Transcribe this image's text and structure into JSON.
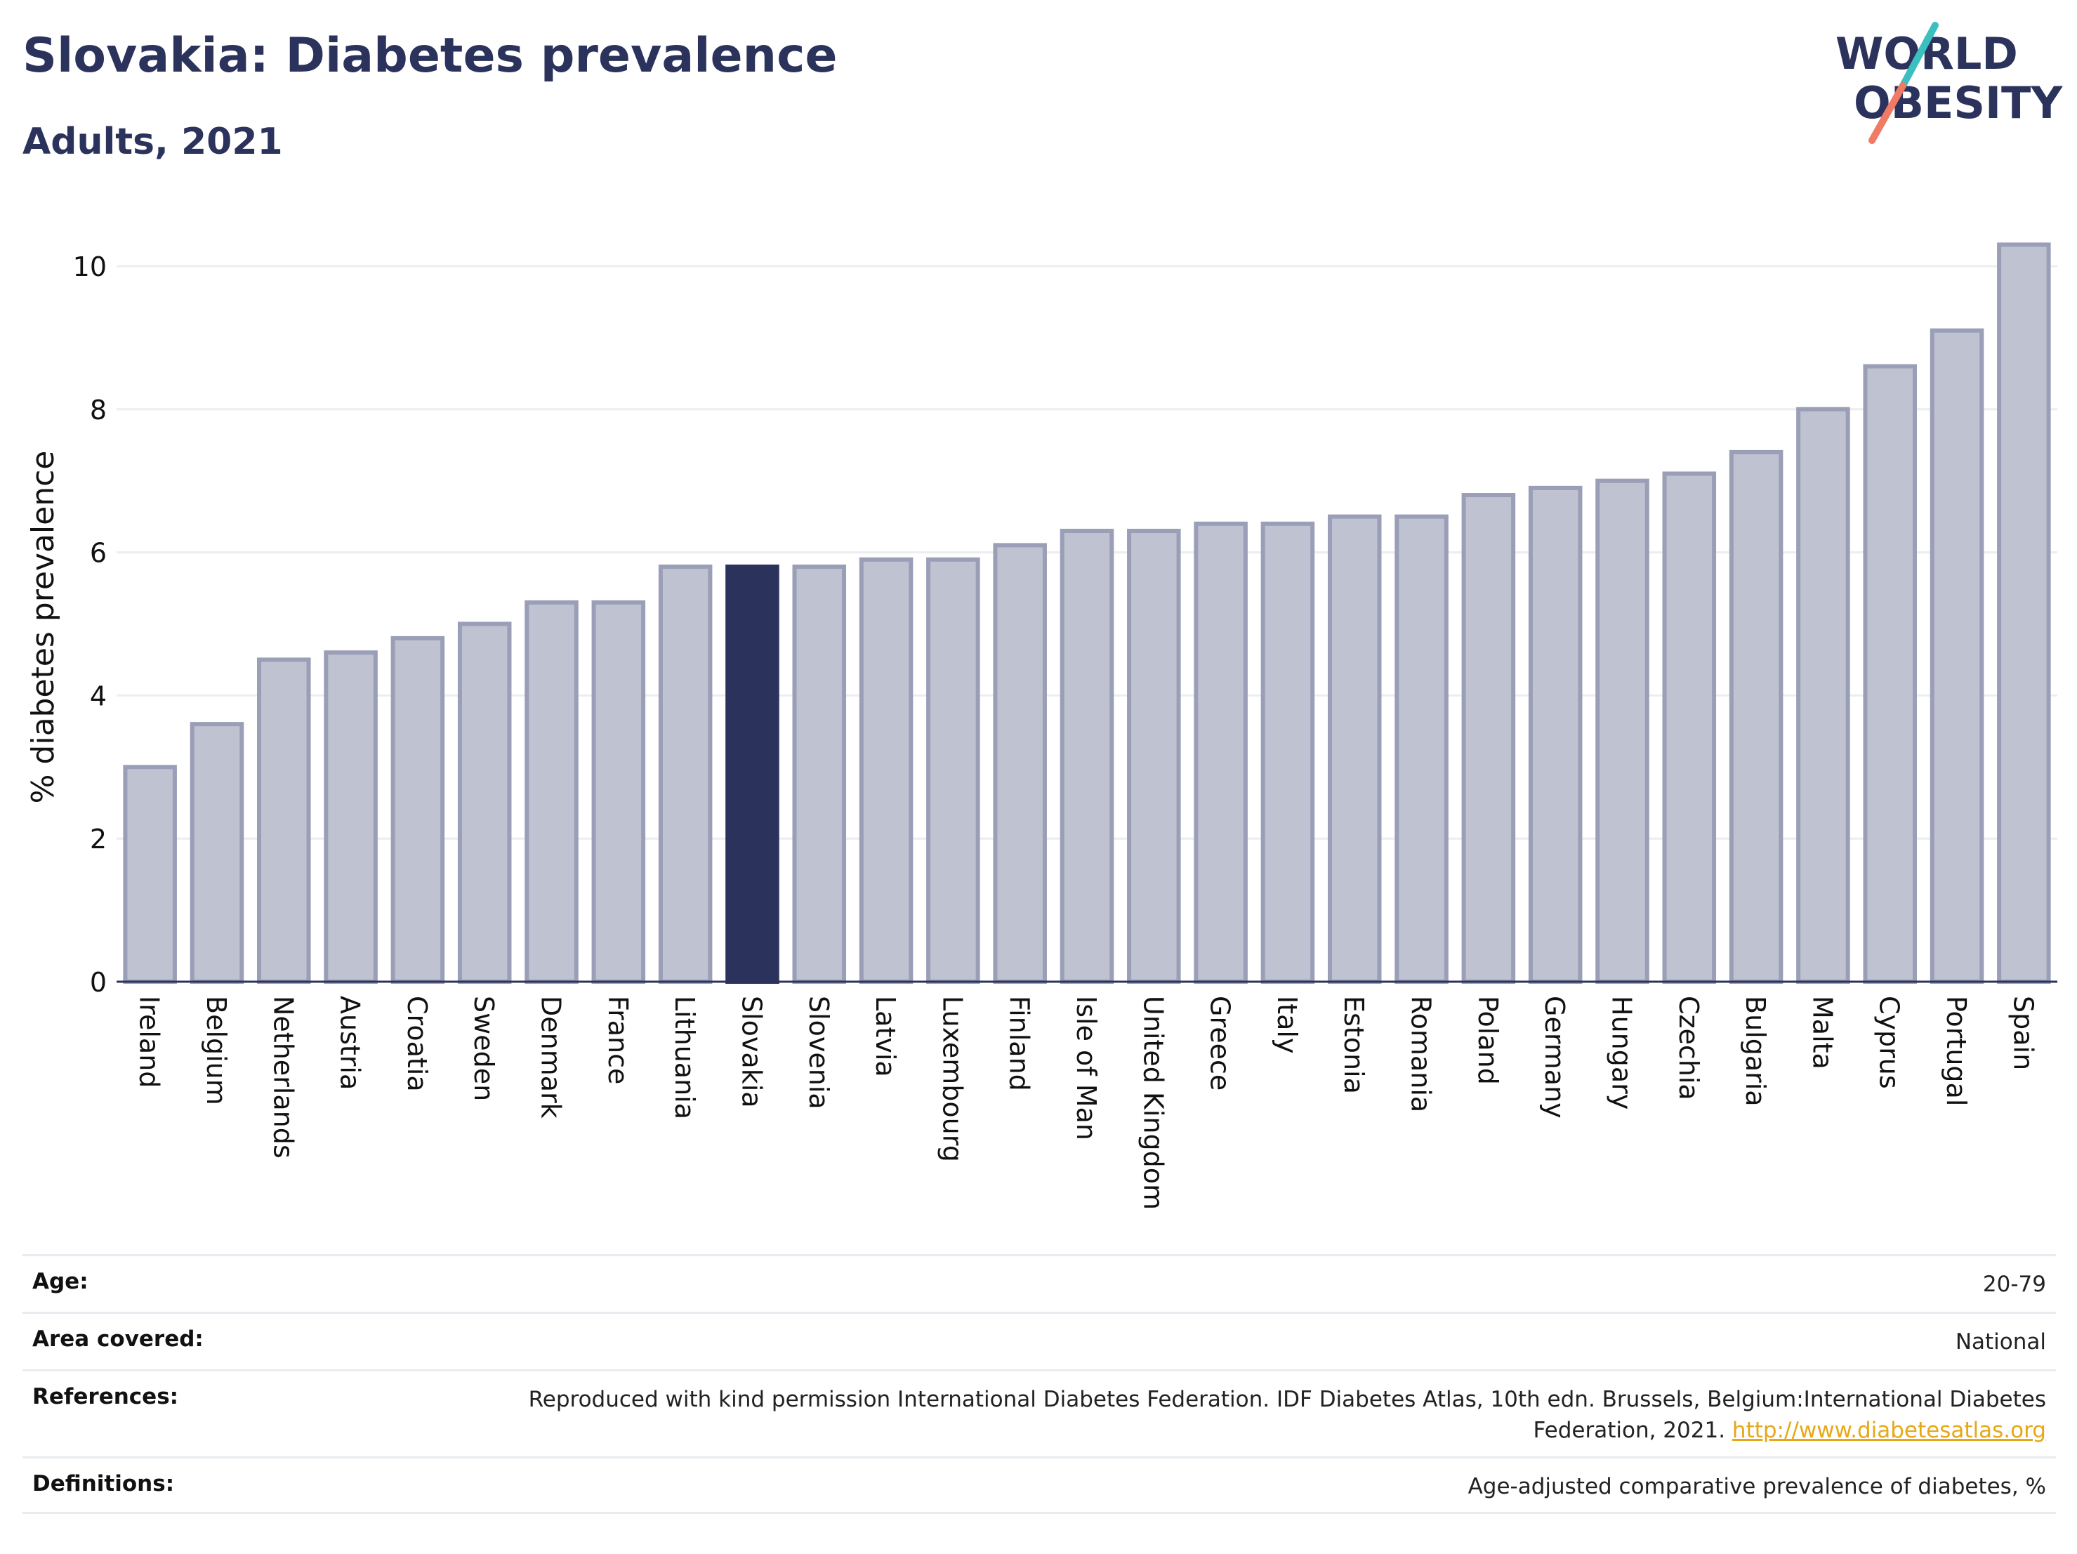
{
  "header": {
    "title": "Slovakia: Diabetes prevalence",
    "subtitle": "Adults, 2021"
  },
  "logo": {
    "line1": "WORLD",
    "line2": "OBESITY"
  },
  "chart_data": {
    "type": "bar",
    "title": "Slovakia: Diabetes prevalence",
    "subtitle": "Adults, 2021",
    "xlabel": "",
    "ylabel": "% diabetes prevalence",
    "ylim": [
      0,
      10.5
    ],
    "yticks": [
      0,
      2,
      4,
      6,
      8,
      10
    ],
    "grid": true,
    "highlight": "Slovakia",
    "categories": [
      "Ireland",
      "Belgium",
      "Netherlands",
      "Austria",
      "Croatia",
      "Sweden",
      "Denmark",
      "France",
      "Lithuania",
      "Slovakia",
      "Slovenia",
      "Latvia",
      "Luxembourg",
      "Finland",
      "Isle of Man",
      "United Kingdom",
      "Greece",
      "Italy",
      "Estonia",
      "Romania",
      "Poland",
      "Germany",
      "Hungary",
      "Czechia",
      "Bulgaria",
      "Malta",
      "Cyprus",
      "Portugal",
      "Spain"
    ],
    "values": [
      3.0,
      3.6,
      4.5,
      4.6,
      4.8,
      5.0,
      5.3,
      5.3,
      5.8,
      5.8,
      5.8,
      5.9,
      5.9,
      6.1,
      6.3,
      6.3,
      6.4,
      6.4,
      6.5,
      6.5,
      6.8,
      6.9,
      7.0,
      7.1,
      7.4,
      8.0,
      8.6,
      9.1,
      10.3
    ],
    "colors": {
      "bar": "#bfc2d0",
      "bar_edge": "#9a9eb6",
      "highlight": "#2b335c",
      "grid": "#ebedf0",
      "axis": "#2b335c"
    }
  },
  "info": [
    {
      "label": "Age:",
      "value": "20-79"
    },
    {
      "label": "Area covered:",
      "value": "National"
    },
    {
      "label": "References:",
      "value": "Reproduced with kind permission International Diabetes Federation.  IDF Diabetes Atlas, 10th edn. Brussels, Belgium:International Diabetes Federation, 2021.",
      "link": "http://www.diabetesatlas.org"
    },
    {
      "label": "Definitions:",
      "value": "Age-adjusted comparative prevalence of diabetes, %"
    }
  ]
}
